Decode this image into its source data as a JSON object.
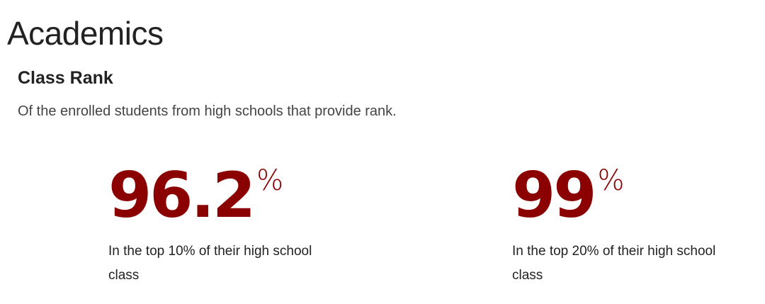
{
  "section": {
    "title": "Academics",
    "subtitle": "Class Rank",
    "description": "Of the enrolled students from high schools that provide rank."
  },
  "stats": [
    {
      "value": "96.2",
      "unit": "%",
      "label": "In the top 10% of their high school class"
    },
    {
      "value": "99",
      "unit": "%",
      "label": "In the top 20% of their high school class"
    }
  ],
  "colors": {
    "accent": "#8b0000",
    "text": "#222222"
  }
}
